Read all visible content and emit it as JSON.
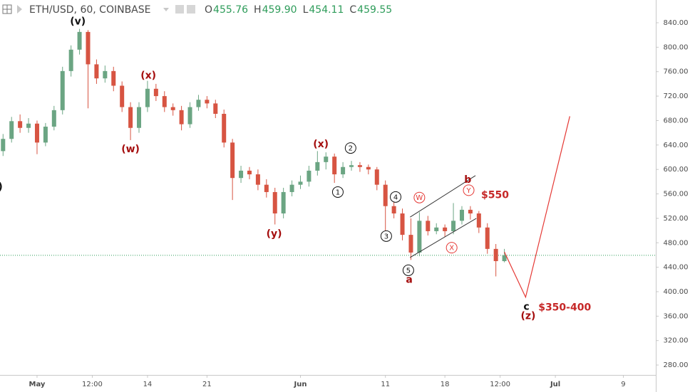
{
  "header": {
    "symbol": "ETH/USD, 60, COINBASE",
    "quote": [
      {
        "key": "O",
        "text": "455.76"
      },
      {
        "key": "H",
        "text": "459.90"
      },
      {
        "key": "L",
        "text": "454.11"
      },
      {
        "key": "C",
        "text": "459.55"
      }
    ]
  },
  "chart_data": {
    "type": "candlestick",
    "up_color": "#6ba583",
    "down_color": "#d75442",
    "x": [
      -4,
      -3,
      -2,
      -1,
      0,
      1,
      2,
      3,
      4,
      5,
      6,
      7,
      8,
      9,
      10,
      11,
      12,
      13,
      14,
      15,
      16,
      17,
      18,
      19,
      20,
      21,
      22,
      23,
      24,
      25,
      26,
      27,
      28,
      29,
      30,
      31,
      32,
      33,
      34,
      35,
      36,
      37,
      38,
      39,
      40,
      41,
      42,
      43,
      44,
      45,
      46,
      47,
      48,
      49,
      50,
      51,
      52,
      53,
      54,
      55
    ],
    "open": [
      630,
      650,
      679,
      668,
      675,
      644,
      670,
      697,
      761,
      796,
      825,
      772,
      749,
      761,
      737,
      702,
      668,
      702,
      732,
      720,
      702,
      697,
      674,
      702,
      714,
      708,
      691,
      644,
      586,
      598,
      592,
      575,
      563,
      528,
      563,
      575,
      580,
      598,
      612,
      621,
      592,
      604,
      607,
      604,
      600,
      575,
      540,
      528,
      493,
      464,
      516,
      499,
      505,
      499,
      516,
      534,
      528,
      505,
      470,
      450
    ],
    "high": [
      658,
      686,
      690,
      684,
      680,
      676,
      704,
      768,
      803,
      830,
      828,
      780,
      770,
      768,
      744,
      710,
      710,
      745,
      740,
      728,
      708,
      704,
      710,
      722,
      720,
      714,
      698,
      650,
      606,
      604,
      600,
      584,
      570,
      570,
      582,
      590,
      606,
      630,
      628,
      626,
      612,
      614,
      612,
      608,
      604,
      582,
      548,
      536,
      520,
      530,
      524,
      512,
      510,
      545,
      540,
      540,
      532,
      512,
      478,
      470
    ],
    "low": [
      622,
      644,
      660,
      660,
      625,
      638,
      664,
      690,
      752,
      788,
      700,
      740,
      742,
      728,
      694,
      648,
      660,
      694,
      712,
      694,
      688,
      664,
      668,
      696,
      700,
      684,
      636,
      550,
      578,
      584,
      566,
      554,
      510,
      520,
      556,
      568,
      572,
      590,
      600,
      578,
      586,
      598,
      596,
      592,
      566,
      500,
      520,
      484,
      452,
      458,
      492,
      494,
      490,
      494,
      510,
      518,
      496,
      462,
      425,
      448
    ],
    "close": [
      650,
      679,
      668,
      675,
      644,
      670,
      697,
      761,
      796,
      825,
      772,
      749,
      761,
      737,
      702,
      668,
      702,
      732,
      720,
      702,
      697,
      674,
      702,
      714,
      708,
      691,
      644,
      586,
      598,
      592,
      575,
      563,
      528,
      563,
      575,
      580,
      598,
      612,
      621,
      592,
      604,
      607,
      604,
      600,
      575,
      540,
      528,
      493,
      464,
      516,
      499,
      505,
      499,
      516,
      534,
      528,
      505,
      470,
      450,
      459.55
    ],
    "xlim": [
      -4.36,
      72.82
    ],
    "xticks": [
      {
        "value": 0,
        "label": "May"
      },
      {
        "value": 6.5,
        "label": "12:00"
      },
      {
        "value": 13,
        "label": "14"
      },
      {
        "value": 20,
        "label": "21"
      },
      {
        "value": 31,
        "label": "Jun"
      },
      {
        "value": 41,
        "label": "11"
      },
      {
        "value": 48,
        "label": "18"
      },
      {
        "value": 54.5,
        "label": "12:00"
      },
      {
        "value": 61,
        "label": "Jul"
      },
      {
        "value": 69,
        "label": "9"
      }
    ],
    "ylim": [
      263.8,
      877.25
    ],
    "yticks": [
      {
        "value": 280,
        "label": "280.00"
      },
      {
        "value": 320,
        "label": "320.00"
      },
      {
        "value": 360,
        "label": "360.00"
      },
      {
        "value": 400,
        "label": "400.00"
      },
      {
        "value": 440,
        "label": "440.00"
      },
      {
        "value": 480,
        "label": "480.00"
      },
      {
        "value": 520,
        "label": "520.00"
      },
      {
        "value": 560,
        "label": "560.00"
      },
      {
        "value": 600,
        "label": "600.00"
      },
      {
        "value": 640,
        "label": "640.00"
      },
      {
        "value": 680,
        "label": "680.00"
      },
      {
        "value": 720,
        "label": "720.00"
      },
      {
        "value": 760,
        "label": "760.00"
      },
      {
        "value": 800,
        "label": "800.00"
      },
      {
        "value": 840,
        "label": "840.00"
      }
    ],
    "price_line": {
      "value": 459.55,
      "color": "#2e9c5a"
    },
    "channel": [
      {
        "x": [
          43.9,
          51.6
        ],
        "y": [
          522,
          590
        ],
        "color": "#333333"
      },
      {
        "x": [
          43.9,
          51.7
        ],
        "y": [
          456,
          520
        ],
        "color": "#333333"
      }
    ],
    "projection": {
      "x": [
        55,
        57.5,
        62.7
      ],
      "y": [
        465,
        391,
        687
      ],
      "color": "#e53935"
    },
    "annotations": [
      {
        "text": "v)",
        "x": -4.7,
        "y": 571,
        "color": "#111111",
        "circled": false
      },
      {
        "text": "(v)",
        "x": 4.8,
        "y": 842,
        "color": "#111111",
        "circled": false
      },
      {
        "text": "(x)",
        "x": 13.1,
        "y": 753,
        "color": "#a50e0e",
        "circled": false
      },
      {
        "text": "(w)",
        "x": 11.0,
        "y": 633,
        "color": "#a50e0e",
        "circled": false
      },
      {
        "text": "(x)",
        "x": 33.4,
        "y": 641,
        "color": "#a50e0e",
        "circled": false
      },
      {
        "text": "(y)",
        "x": 27.9,
        "y": 494,
        "color": "#a50e0e",
        "circled": false
      },
      {
        "text": "2",
        "x": 36.9,
        "y": 635,
        "color": "#111111",
        "circled": true
      },
      {
        "text": "1",
        "x": 35.4,
        "y": 563,
        "color": "#111111",
        "circled": true
      },
      {
        "text": "4",
        "x": 42.2,
        "y": 555,
        "color": "#111111",
        "circled": true
      },
      {
        "text": "3",
        "x": 41.1,
        "y": 491,
        "color": "#111111",
        "circled": true
      },
      {
        "text": "5",
        "x": 43.7,
        "y": 435,
        "color": "#111111",
        "circled": true
      },
      {
        "text": "a",
        "x": 43.8,
        "y": 419,
        "color": "#a50e0e",
        "circled": false
      },
      {
        "text": "b",
        "x": 50.7,
        "y": 583,
        "color": "#a50e0e",
        "circled": false
      },
      {
        "text": "W",
        "x": 45.0,
        "y": 554,
        "color": "#e53935",
        "circled": true
      },
      {
        "text": "Y",
        "x": 50.8,
        "y": 566,
        "color": "#e53935",
        "circled": true
      },
      {
        "text": "X",
        "x": 48.8,
        "y": 472,
        "color": "#e53935",
        "circled": true
      },
      {
        "text": "$550",
        "x": 53.9,
        "y": 558,
        "color": "#c62828",
        "circled": false
      },
      {
        "text": "c",
        "x": 57.6,
        "y": 375,
        "color": "#111111",
        "circled": false
      },
      {
        "text": "(z)",
        "x": 57.8,
        "y": 360,
        "color": "#a50e0e",
        "circled": false
      },
      {
        "text": "$350-400",
        "x": 62.1,
        "y": 374,
        "color": "#c62828",
        "circled": false
      }
    ]
  }
}
